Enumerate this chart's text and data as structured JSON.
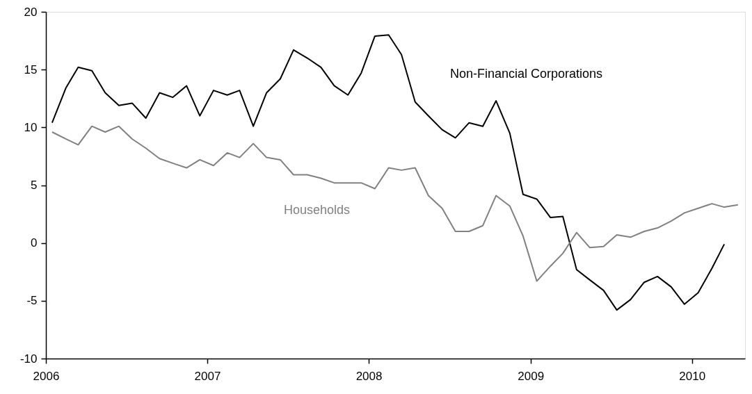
{
  "chart_data": {
    "type": "line",
    "xlim": [
      "2006-01-01",
      "2010-05-01"
    ],
    "xticks": [
      {
        "value": "2006-01-01",
        "label": "2006"
      },
      {
        "value": "2007-01-01",
        "label": "2007"
      },
      {
        "value": "2008-01-01",
        "label": "2008"
      },
      {
        "value": "2009-01-01",
        "label": "2009"
      },
      {
        "value": "2010-01-01",
        "label": "2010"
      }
    ],
    "ylim": [
      -10,
      20
    ],
    "yticks": [
      -10,
      -5,
      0,
      5,
      10,
      15,
      20
    ],
    "grid": false,
    "marker": "none",
    "line_style": "solid",
    "series": [
      {
        "name": "Non-Financial Corporations",
        "color": "#000000",
        "values": [
          10.4,
          13.4,
          15.2,
          14.9,
          13.0,
          11.9,
          12.1,
          10.8,
          13.0,
          12.6,
          13.6,
          11.0,
          13.2,
          12.8,
          13.2,
          10.1,
          13.0,
          14.2,
          16.7,
          16.0,
          15.2,
          13.6,
          12.8,
          14.7,
          17.9,
          18.0,
          16.3,
          12.2,
          11.0,
          9.8,
          9.1,
          10.4,
          10.1,
          12.3,
          9.5,
          4.2,
          3.8,
          2.2,
          2.3,
          -2.3,
          -3.2,
          -4.1,
          -5.8,
          -4.9,
          -3.4,
          -2.9,
          -3.8,
          -5.3,
          -4.3,
          -2.2,
          -0.1
        ],
        "x": [
          "2006-01-15",
          "2006-02-15",
          "2006-03-15",
          "2006-04-15",
          "2006-05-15",
          "2006-06-15",
          "2006-07-15",
          "2006-08-15",
          "2006-09-15",
          "2006-10-15",
          "2006-11-15",
          "2006-12-15",
          "2007-01-15",
          "2007-02-15",
          "2007-03-15",
          "2007-04-15",
          "2007-05-15",
          "2007-06-15",
          "2007-07-15",
          "2007-08-15",
          "2007-09-15",
          "2007-10-15",
          "2007-11-15",
          "2007-12-15",
          "2008-01-15",
          "2008-02-15",
          "2008-03-15",
          "2008-04-15",
          "2008-05-15",
          "2008-06-15",
          "2008-07-15",
          "2008-08-15",
          "2008-09-15",
          "2008-10-15",
          "2008-11-15",
          "2008-12-15",
          "2009-01-15",
          "2009-02-15",
          "2009-03-15",
          "2009-04-15",
          "2009-05-15",
          "2009-06-15",
          "2009-07-15",
          "2009-08-15",
          "2009-09-15",
          "2009-10-15",
          "2009-11-15",
          "2009-12-15",
          "2010-01-15",
          "2010-02-15",
          "2010-03-15"
        ]
      },
      {
        "name": "Households",
        "color": "#808080",
        "values": [
          9.6,
          9.0,
          8.5,
          10.1,
          9.6,
          10.1,
          9.0,
          8.2,
          7.3,
          6.9,
          6.5,
          7.2,
          6.7,
          7.8,
          7.4,
          8.6,
          7.4,
          7.2,
          5.9,
          5.9,
          5.6,
          5.2,
          5.2,
          5.2,
          4.7,
          6.5,
          6.3,
          6.5,
          4.1,
          3.0,
          1.0,
          1.0,
          1.5,
          4.1,
          3.2,
          0.6,
          -3.3,
          -2.0,
          -0.9,
          0.9,
          -0.4,
          -0.3,
          0.7,
          0.5,
          1.0,
          1.3,
          1.9,
          2.6,
          3.0,
          3.4,
          3.1,
          3.3
        ],
        "x": [
          "2006-01-15",
          "2006-02-15",
          "2006-03-15",
          "2006-04-15",
          "2006-05-15",
          "2006-06-15",
          "2006-07-15",
          "2006-08-15",
          "2006-09-15",
          "2006-10-15",
          "2006-11-15",
          "2006-12-15",
          "2007-01-15",
          "2007-02-15",
          "2007-03-15",
          "2007-04-15",
          "2007-05-15",
          "2007-06-15",
          "2007-07-15",
          "2007-08-15",
          "2007-09-15",
          "2007-10-15",
          "2007-11-15",
          "2007-12-15",
          "2008-01-15",
          "2008-02-15",
          "2008-03-15",
          "2008-04-15",
          "2008-05-15",
          "2008-06-15",
          "2008-07-15",
          "2008-08-15",
          "2008-09-15",
          "2008-10-15",
          "2008-11-15",
          "2008-12-15",
          "2009-01-15",
          "2009-02-15",
          "2009-03-15",
          "2009-04-15",
          "2009-05-15",
          "2009-06-15",
          "2009-07-15",
          "2009-08-15",
          "2009-09-15",
          "2009-10-15",
          "2009-11-15",
          "2009-12-15",
          "2010-01-15",
          "2010-02-15",
          "2010-03-15",
          "2010-04-15"
        ]
      }
    ]
  }
}
